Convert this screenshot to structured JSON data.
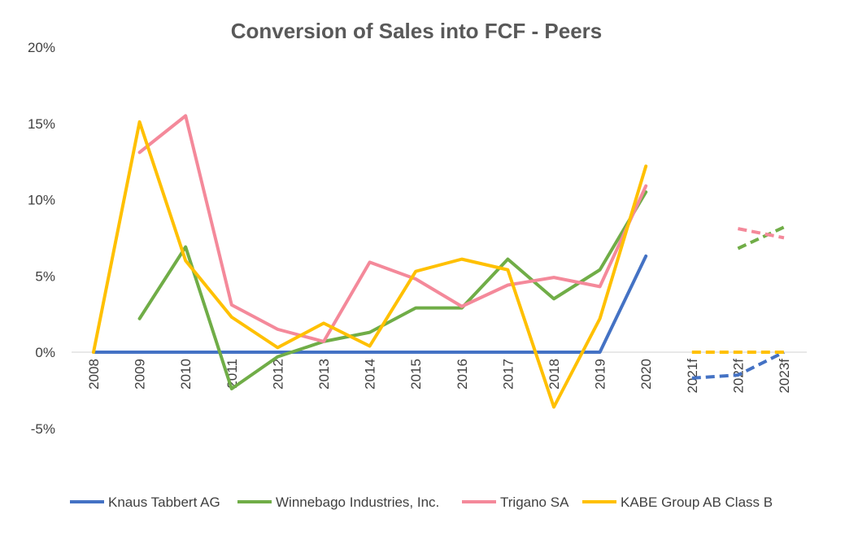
{
  "chart_data": {
    "type": "line",
    "title": "Conversion of Sales into FCF - Peers",
    "xlabel": "",
    "ylabel": "",
    "categories": [
      "2008",
      "2009",
      "2010",
      "2011",
      "2012",
      "2013",
      "2014",
      "2015",
      "2016",
      "2017",
      "2018",
      "2019",
      "2020",
      "2021f",
      "2022f",
      "2023f"
    ],
    "yticks": [
      "-5%",
      "0%",
      "5%",
      "10%",
      "15%",
      "20%"
    ],
    "ylim": [
      -5,
      20
    ],
    "grid": false,
    "legend_position": "bottom",
    "forecast_categories": [
      "2021f",
      "2022f",
      "2023f"
    ],
    "series": [
      {
        "name": "Knaus Tabbert AG",
        "color": "#4472C4",
        "values": [
          0,
          0,
          0,
          0,
          0,
          0,
          0,
          0,
          0,
          0,
          0,
          0,
          6.3,
          -1.7,
          -1.5,
          0.0
        ]
      },
      {
        "name": "Winnebago Industries, Inc.",
        "color": "#70AD47",
        "values": [
          null,
          2.2,
          6.9,
          -2.4,
          -0.3,
          0.7,
          1.3,
          2.9,
          2.9,
          6.1,
          3.5,
          5.4,
          10.5,
          null,
          6.8,
          8.2
        ]
      },
      {
        "name": "Trigano SA",
        "color": "#F4899A",
        "values": [
          null,
          13.1,
          15.5,
          3.1,
          1.5,
          0.7,
          5.9,
          4.8,
          3.0,
          4.4,
          4.9,
          4.3,
          10.9,
          null,
          8.1,
          7.5
        ]
      },
      {
        "name": "KABE Group AB Class B",
        "color": "#FFC000",
        "values": [
          0,
          15.1,
          6.0,
          2.3,
          0.3,
          1.9,
          0.4,
          5.3,
          6.1,
          5.4,
          -3.6,
          2.2,
          12.2,
          0.0,
          0.0,
          0.0
        ]
      }
    ]
  }
}
